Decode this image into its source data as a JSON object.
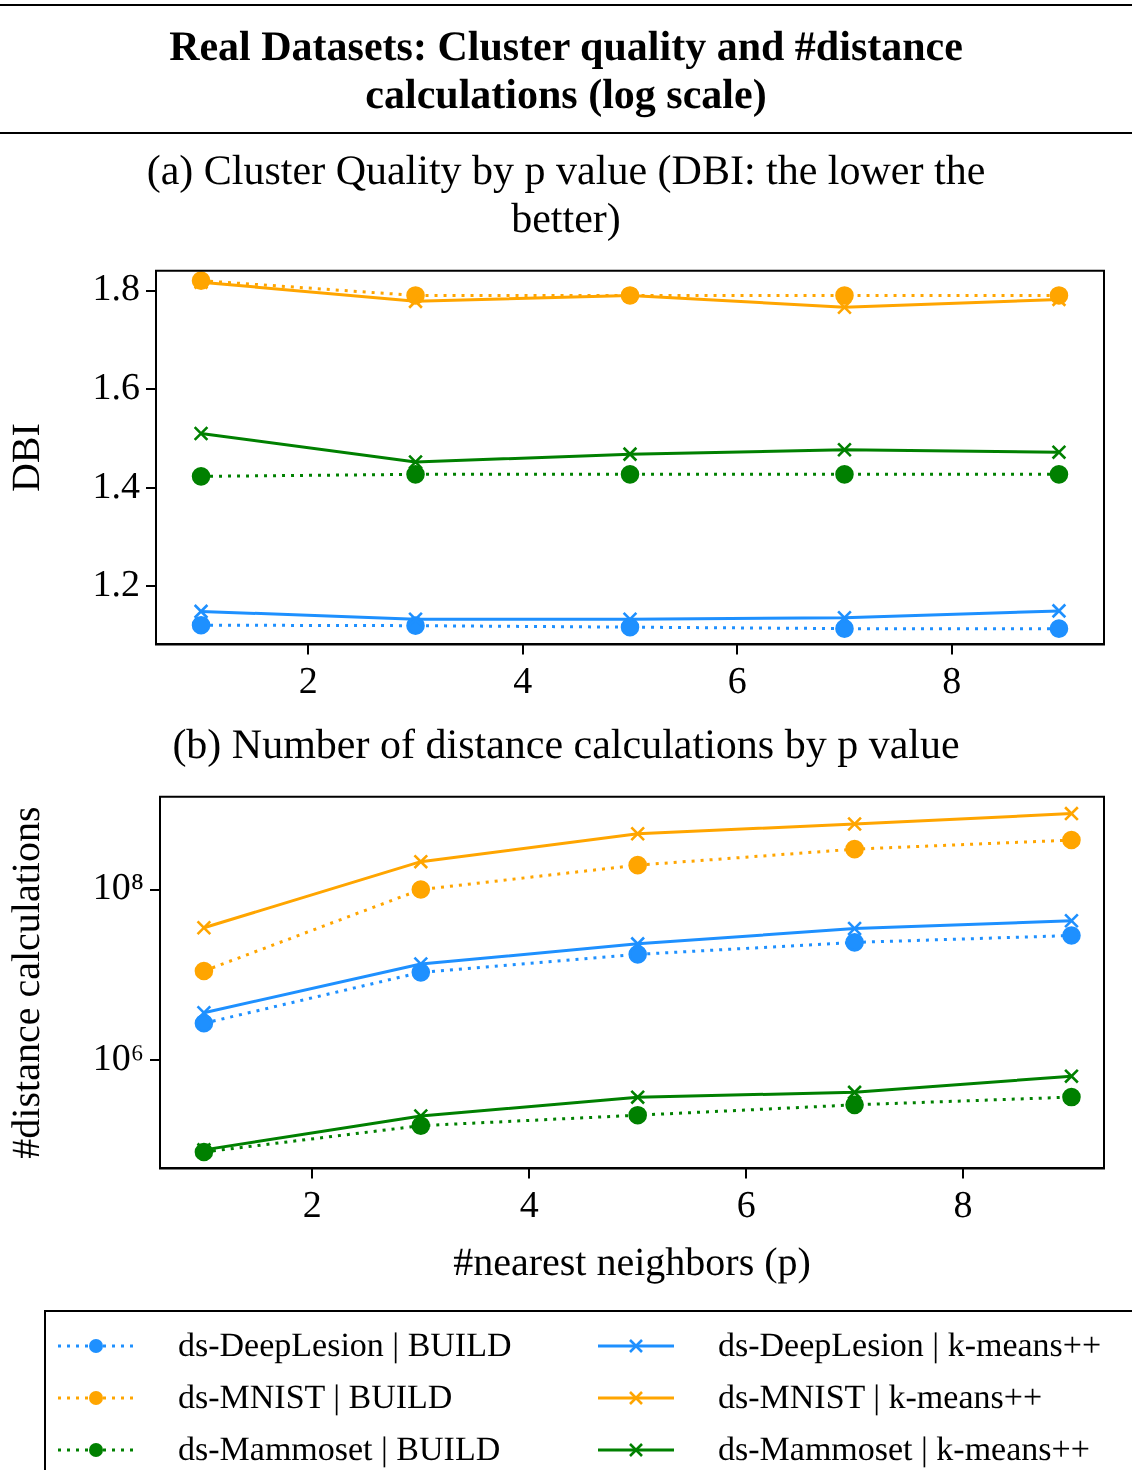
{
  "chart_data": [
    {
      "type": "line",
      "title": "Real Datasets: Cluster quality and #distance calculations (log scale)",
      "subtitle": "(a) Cluster Quality by p value (DBI: the lower the better)",
      "ylabel": "DBI",
      "x": [
        1,
        3,
        5,
        7,
        9
      ],
      "xlim": [
        0.58,
        9.42
      ],
      "xticks": [
        2,
        4,
        6,
        8
      ],
      "ylim": [
        1.082,
        1.84
      ],
      "yticks": [
        1.2,
        1.4,
        1.6,
        1.8
      ],
      "grid": false,
      "legend": false,
      "series": [
        {
          "color": "#1e90ff",
          "marker": "circle",
          "line_style": "dotted",
          "values": [
            1.121,
            1.12,
            1.117,
            1.114,
            1.114
          ]
        },
        {
          "color": "#ffa500",
          "marker": "circle",
          "line_style": "dotted",
          "values": [
            1.82,
            1.79,
            1.79,
            1.79,
            1.79
          ]
        },
        {
          "color": "#008000",
          "marker": "circle",
          "line_style": "dotted",
          "values": [
            1.423,
            1.427,
            1.427,
            1.427,
            1.427
          ]
        },
        {
          "color": "#1e90ff",
          "marker": "cross",
          "line_style": "solid",
          "values": [
            1.149,
            1.133,
            1.133,
            1.136,
            1.15
          ]
        },
        {
          "color": "#ffa500",
          "marker": "cross",
          "line_style": "solid",
          "values": [
            1.817,
            1.778,
            1.79,
            1.766,
            1.782
          ]
        },
        {
          "color": "#008000",
          "marker": "cross",
          "line_style": "solid",
          "values": [
            1.51,
            1.452,
            1.468,
            1.477,
            1.472
          ]
        }
      ]
    },
    {
      "type": "line",
      "title": "(b) Number of distance calculations by p value",
      "xlabel": "#nearest neighbors (p)",
      "ylabel": "#distance calculations",
      "x": [
        1,
        3,
        5,
        7,
        9
      ],
      "xlim": [
        0.595,
        9.3
      ],
      "xticks": [
        2,
        4,
        6,
        8
      ],
      "log": true,
      "ylim": [
        54000,
        1220000000
      ],
      "yticks": [
        {
          "value": 1000000,
          "label": "10⁶"
        },
        {
          "value": 100000000,
          "label": "10⁸"
        }
      ],
      "grid": false,
      "legend": "bottom",
      "series": [
        {
          "name": "ds-DeepLesion | BUILD",
          "color": "#1e90ff",
          "marker": "circle",
          "line_style": "dotted",
          "values": [
            2710000,
            10700000,
            17400000,
            24000000,
            28900000
          ]
        },
        {
          "name": "ds-MNIST | BUILD",
          "color": "#ffa500",
          "marker": "circle",
          "line_style": "dotted",
          "values": [
            11100000,
            100000000,
            193000000,
            297000000,
            380000000
          ]
        },
        {
          "name": "ds-Mammoset | BUILD",
          "color": "#008000",
          "marker": "circle",
          "line_style": "dotted",
          "values": [
            84000,
            171000,
            227000,
            300000,
            370000
          ]
        },
        {
          "name": "ds-DeepLesion | k-means++",
          "color": "#1e90ff",
          "marker": "cross",
          "line_style": "solid",
          "values": [
            3600000,
            13400000,
            23100000,
            34900000,
            43000000
          ]
        },
        {
          "name": "ds-MNIST | k-means++",
          "color": "#ffa500",
          "marker": "cross",
          "line_style": "solid",
          "values": [
            35600000,
            212000000,
            450000000,
            585000000,
            776000000
          ]
        },
        {
          "name": "ds-Mammoset | k-means++",
          "color": "#008000",
          "marker": "cross",
          "line_style": "solid",
          "values": [
            89000,
            222000,
            369000,
            420000,
            650000
          ]
        }
      ]
    }
  ]
}
